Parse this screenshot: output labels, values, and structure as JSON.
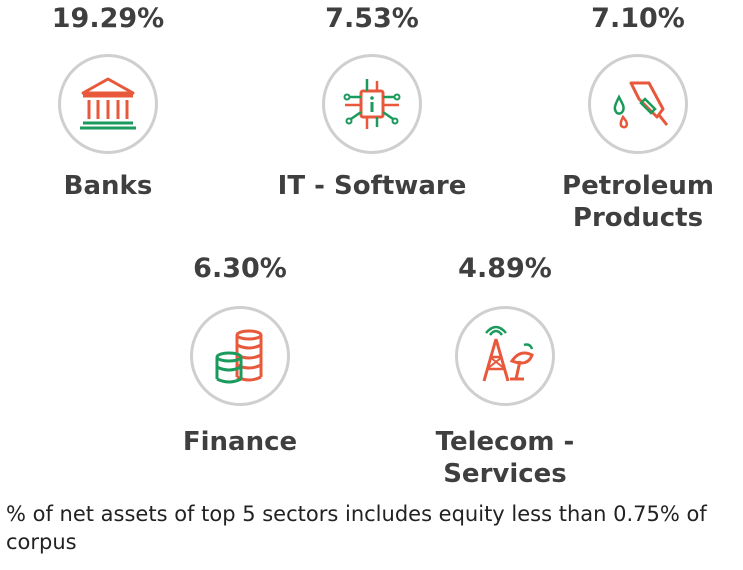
{
  "colors": {
    "text": "#3f3f3f",
    "icon_red": "#e8583b",
    "icon_green": "#1a9a5c",
    "circle_border": "#cfcfcf"
  },
  "chart_data": {
    "type": "table",
    "title": "",
    "categories": [
      "Banks",
      "IT - Software",
      "Petroleum Products",
      "Finance",
      "Telecom - Services"
    ],
    "values": [
      19.29,
      7.53,
      7.1,
      6.3,
      4.89
    ],
    "unit": "%"
  },
  "sectors": [
    {
      "pct": "19.29%",
      "name_lines": [
        "Banks"
      ],
      "icon": "bank-icon"
    },
    {
      "pct": "7.53%",
      "name_lines": [
        "IT - Software"
      ],
      "icon": "chip-icon"
    },
    {
      "pct": "7.10%",
      "name_lines": [
        "Petroleum",
        "Products"
      ],
      "icon": "fuel-nozzle-icon"
    },
    {
      "pct": "6.30%",
      "name_lines": [
        "Finance"
      ],
      "icon": "coins-icon"
    },
    {
      "pct": "4.89%",
      "name_lines": [
        "Telecom -",
        "Services"
      ],
      "icon": "antenna-icon"
    }
  ],
  "footnote": "% of net assets of top 5 sectors includes equity less than 0.75% of corpus"
}
